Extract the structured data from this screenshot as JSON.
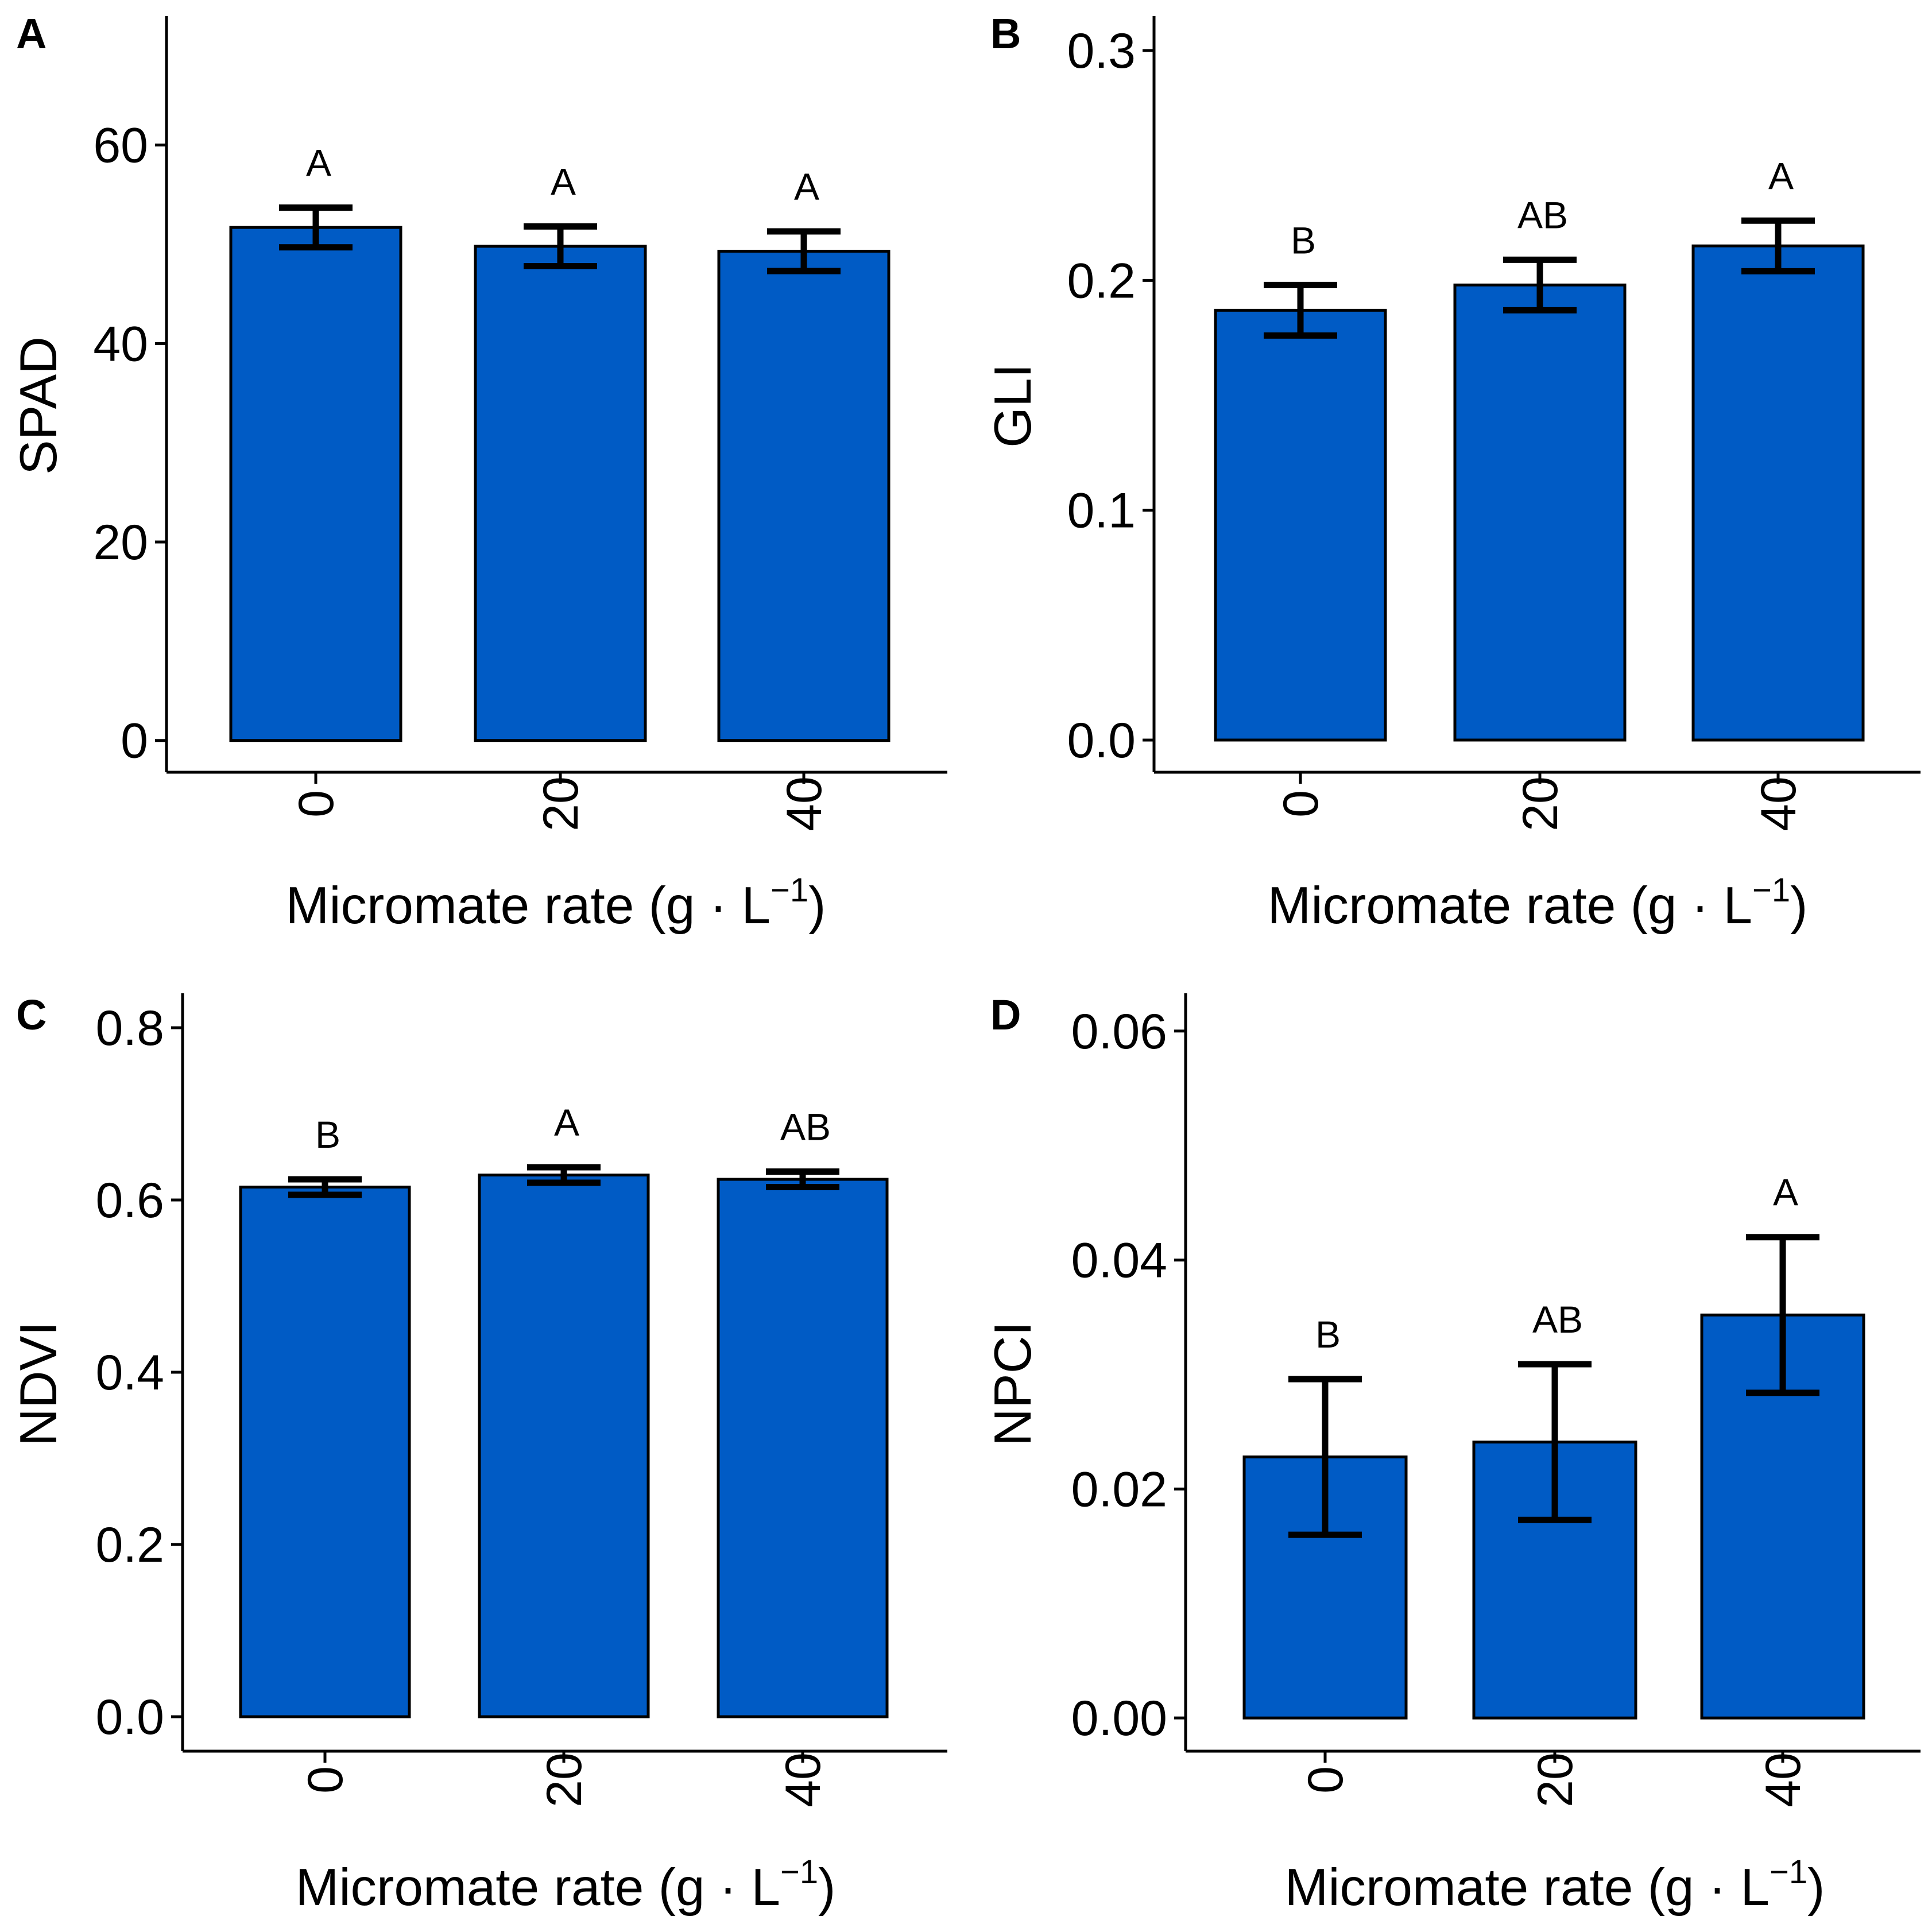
{
  "colors": {
    "bar_fill": "#005BC5",
    "bar_stroke": "#000000",
    "axis": "#000000",
    "background": "#FFFFFF"
  },
  "chart_data": [
    {
      "panel": "A",
      "type": "bar",
      "categories": [
        "0",
        "20",
        "40"
      ],
      "values": [
        51.7,
        49.8,
        49.3
      ],
      "errors": [
        2.0,
        2.0,
        2.0
      ],
      "significance": [
        "A",
        "A",
        "A"
      ],
      "ylim": [
        -3.2,
        73
      ],
      "yticks": [
        "0",
        "20",
        "40",
        "60"
      ],
      "ytick_values": [
        0,
        20,
        40,
        60
      ],
      "ylabel": "SPAD",
      "xlabel": "Micromate rate (g · L",
      "xlabel_sup": "−1",
      "xlabel_end": ")"
    },
    {
      "panel": "B",
      "type": "bar",
      "categories": [
        "0",
        "20",
        "40"
      ],
      "values": [
        0.187,
        0.198,
        0.215
      ],
      "errors": [
        0.011,
        0.011,
        0.011
      ],
      "significance": [
        "B",
        "AB",
        "A"
      ],
      "ylim": [
        -0.014,
        0.315
      ],
      "yticks": [
        "0.0",
        "0.1",
        "0.2",
        "0.3"
      ],
      "ytick_values": [
        0,
        0.1,
        0.2,
        0.3
      ],
      "ylabel": "GLI",
      "xlabel": "Micromate rate (g · L",
      "xlabel_sup": "−1",
      "xlabel_end": ")"
    },
    {
      "panel": "C",
      "type": "bar",
      "categories": [
        "0",
        "20",
        "40"
      ],
      "values": [
        0.615,
        0.629,
        0.624
      ],
      "errors": [
        0.009,
        0.009,
        0.009
      ],
      "significance": [
        "B",
        "A",
        "AB"
      ],
      "ylim": [
        -0.04,
        0.84
      ],
      "yticks": [
        "0.0",
        "0.2",
        "0.4",
        "0.6",
        "0.8"
      ],
      "ytick_values": [
        0,
        0.2,
        0.4,
        0.6,
        0.8
      ],
      "ylabel": "NDVI",
      "xlabel": "Micromate rate (g · L",
      "xlabel_sup": "−1",
      "xlabel_end": ")"
    },
    {
      "panel": "D",
      "type": "bar",
      "categories": [
        "0",
        "20",
        "40"
      ],
      "values": [
        0.0228,
        0.0241,
        0.0352
      ],
      "errors": [
        0.0068,
        0.0068,
        0.0068
      ],
      "significance": [
        "B",
        "AB",
        "A"
      ],
      "ylim": [
        -0.0029,
        0.0633
      ],
      "yticks": [
        "0.00",
        "0.02",
        "0.04",
        "0.06"
      ],
      "ytick_values": [
        0,
        0.02,
        0.04,
        0.06
      ],
      "ylabel": "NPCI",
      "xlabel": "Micromate rate (g · L",
      "xlabel_sup": "−1",
      "xlabel_end": ")"
    }
  ]
}
